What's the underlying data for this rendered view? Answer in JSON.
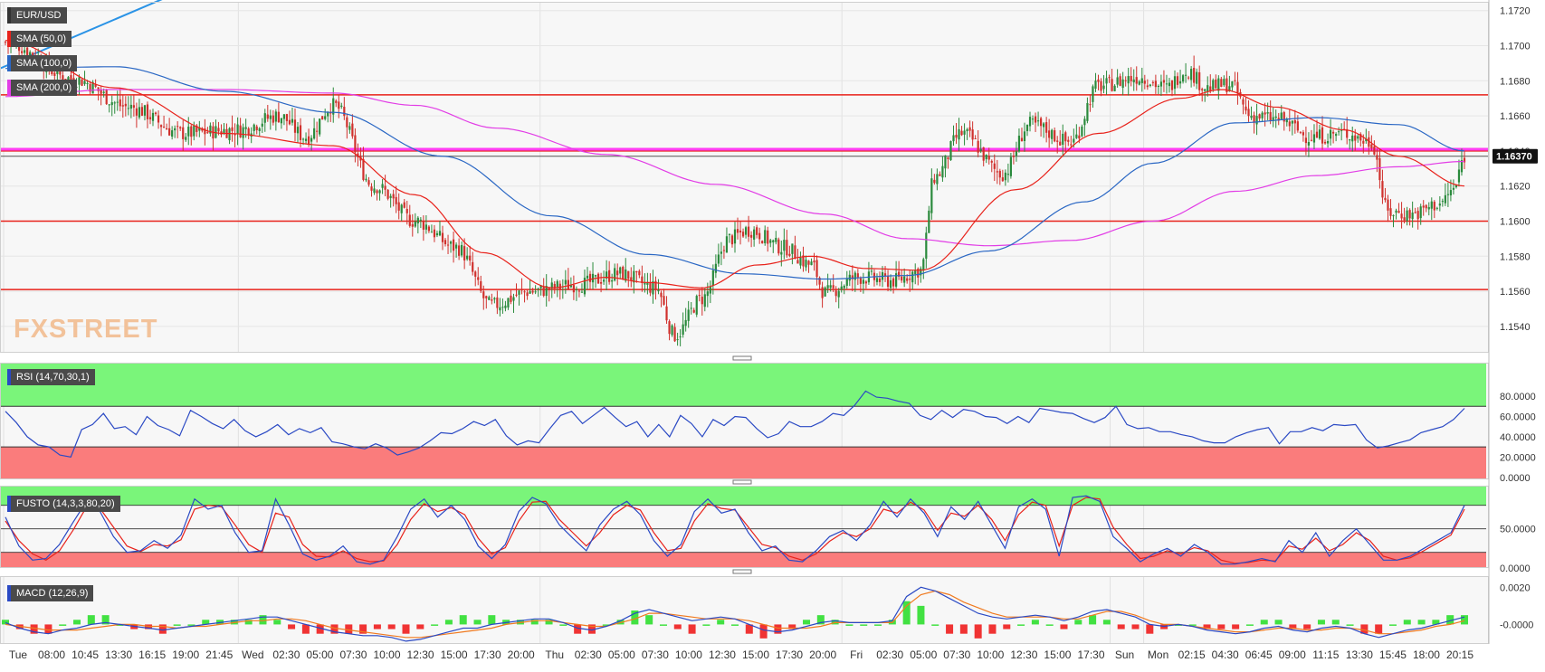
{
  "colors": {
    "up": "#2a8a3c",
    "down": "#d0312d",
    "sma50": "#e8221b",
    "sma100": "#2a67c4",
    "sma200": "#e23de6",
    "trend": "#2a93e6",
    "level": "#e8221b",
    "pivot": "#ff3df2",
    "overbought": "#7af57a",
    "oversold": "#fa7c7c",
    "rsi": "#2a49c4",
    "fusto_k": "#2a49c4",
    "fusto_d": "#e8221b",
    "macd": "#2a49c4",
    "signal": "#f07a1f",
    "hist_up": "#22dd22",
    "hist_down": "#ee1111",
    "grid": "#e6e6e6"
  },
  "chart_data": [
    {
      "type": "candlestick",
      "symbol": "EUR/USD",
      "ylim": [
        1.1525,
        1.1725
      ],
      "yticks": [
        "1.1720",
        "1.1700",
        "1.1680",
        "1.1660",
        "1.1640",
        "1.1620",
        "1.1600",
        "1.1580",
        "1.1560",
        "1.1540"
      ],
      "last_price": "1.16370",
      "horizontal_levels": [
        1.1672,
        1.164,
        1.16,
        1.1561
      ],
      "pivot_level": 1.1641,
      "indicators": [
        "SMA (50,0)",
        "SMA (100,0)",
        "SMA (200,0)"
      ],
      "logo": "FXSTREET",
      "x_labels": [
        "Tue",
        "08:00",
        "10:45",
        "13:30",
        "16:15",
        "19:00",
        "21:45",
        "Wed",
        "02:30",
        "05:00",
        "07:30",
        "10:00",
        "12:30",
        "15:00",
        "17:30",
        "20:00",
        "Thu",
        "02:30",
        "05:00",
        "07:30",
        "10:00",
        "12:30",
        "15:00",
        "17:30",
        "20:00",
        "Fri",
        "02:30",
        "05:00",
        "07:30",
        "10:00",
        "12:30",
        "15:00",
        "17:30",
        "Sun",
        "Mon",
        "02:15",
        "04:30",
        "06:45",
        "09:00",
        "11:15",
        "13:30",
        "15:45",
        "18:00",
        "20:15"
      ],
      "close_anchors": [
        [
          0,
          1.1702
        ],
        [
          25,
          1.1681
        ],
        [
          45,
          1.1665
        ],
        [
          65,
          1.165
        ],
        [
          85,
          1.1652
        ],
        [
          100,
          1.166
        ],
        [
          110,
          1.1648
        ],
        [
          120,
          1.1666
        ],
        [
          135,
          1.162
        ],
        [
          150,
          1.16
        ],
        [
          165,
          1.1585
        ],
        [
          178,
          1.1552
        ],
        [
          192,
          1.156
        ],
        [
          210,
          1.1564
        ],
        [
          225,
          1.157
        ],
        [
          238,
          1.1562
        ],
        [
          245,
          1.1535
        ],
        [
          255,
          1.1556
        ],
        [
          265,
          1.159
        ],
        [
          272,
          1.1595
        ],
        [
          285,
          1.1585
        ],
        [
          295,
          1.1575
        ],
        [
          300,
          1.1559
        ],
        [
          312,
          1.1568
        ],
        [
          325,
          1.1566
        ],
        [
          335,
          1.1572
        ],
        [
          340,
          1.1625
        ],
        [
          350,
          1.165
        ],
        [
          365,
          1.1627
        ],
        [
          375,
          1.1655
        ],
        [
          390,
          1.1645
        ],
        [
          400,
          1.1677
        ],
        [
          415,
          1.1682
        ],
        [
          425,
          1.1676
        ],
        [
          432,
          1.1686
        ],
        [
          440,
          1.1676
        ],
        [
          448,
          1.1678
        ],
        [
          456,
          1.166
        ],
        [
          466,
          1.1658
        ],
        [
          478,
          1.1648
        ],
        [
          490,
          1.165
        ],
        [
          500,
          1.1645
        ],
        [
          506,
          1.1605
        ],
        [
          515,
          1.1604
        ],
        [
          525,
          1.161
        ],
        [
          530,
          1.1618
        ],
        [
          534,
          1.1637
        ]
      ],
      "sma50_anchors": [
        [
          0,
          1.1703
        ],
        [
          40,
          1.1676
        ],
        [
          80,
          1.165
        ],
        [
          120,
          1.1643
        ],
        [
          150,
          1.1615
        ],
        [
          175,
          1.1582
        ],
        [
          200,
          1.1562
        ],
        [
          220,
          1.1568
        ],
        [
          235,
          1.1565
        ],
        [
          255,
          1.1562
        ],
        [
          275,
          1.1575
        ],
        [
          295,
          1.158
        ],
        [
          315,
          1.1573
        ],
        [
          335,
          1.1572
        ],
        [
          370,
          1.1618
        ],
        [
          400,
          1.165
        ],
        [
          430,
          1.167
        ],
        [
          445,
          1.1675
        ],
        [
          465,
          1.1665
        ],
        [
          490,
          1.1652
        ],
        [
          510,
          1.1637
        ],
        [
          534,
          1.162
        ]
      ],
      "sma100_anchors": [
        [
          0,
          1.1687
        ],
        [
          40,
          1.1688
        ],
        [
          80,
          1.1674
        ],
        [
          120,
          1.1662
        ],
        [
          160,
          1.1637
        ],
        [
          200,
          1.1603
        ],
        [
          235,
          1.1581
        ],
        [
          270,
          1.157
        ],
        [
          300,
          1.1567
        ],
        [
          330,
          1.1569
        ],
        [
          360,
          1.1583
        ],
        [
          395,
          1.1611
        ],
        [
          420,
          1.1633
        ],
        [
          450,
          1.1656
        ],
        [
          480,
          1.1659
        ],
        [
          510,
          1.1655
        ],
        [
          534,
          1.164
        ]
      ],
      "sma200_anchors": [
        [
          0,
          1.1671
        ],
        [
          40,
          1.1675
        ],
        [
          80,
          1.1675
        ],
        [
          120,
          1.1673
        ],
        [
          150,
          1.1666
        ],
        [
          180,
          1.1653
        ],
        [
          220,
          1.1638
        ],
        [
          260,
          1.1621
        ],
        [
          300,
          1.1604
        ],
        [
          330,
          1.159
        ],
        [
          360,
          1.1586
        ],
        [
          390,
          1.1589
        ],
        [
          420,
          1.16
        ],
        [
          450,
          1.1617
        ],
        [
          480,
          1.1626
        ],
        [
          510,
          1.1631
        ],
        [
          534,
          1.1634
        ]
      ]
    },
    {
      "type": "line",
      "name": "RSI (14,70,30,1)",
      "ylim": [
        -2,
        113
      ],
      "yticks": [
        "80.0000",
        "60.0000",
        "40.0000",
        "20.0000",
        "0.0000"
      ],
      "overbought": 70,
      "oversold": 30,
      "values": [
        65,
        54,
        40,
        32,
        30,
        22,
        20,
        47,
        52,
        63,
        48,
        50,
        42,
        60,
        51,
        47,
        41,
        66,
        60,
        53,
        48,
        57,
        46,
        40,
        45,
        52,
        42,
        48,
        44,
        49,
        35,
        33,
        30,
        28,
        33,
        29,
        22,
        25,
        29,
        36,
        44,
        43,
        48,
        55,
        51,
        57,
        41,
        32,
        36,
        34,
        48,
        61,
        65,
        53,
        61,
        69,
        59,
        50,
        55,
        40,
        52,
        40,
        61,
        53,
        40,
        57,
        51,
        60,
        59,
        48,
        39,
        43,
        55,
        50,
        50,
        55,
        63,
        61,
        71,
        85,
        79,
        78,
        75,
        73,
        61,
        57,
        66,
        59,
        67,
        65,
        60,
        59,
        53,
        60,
        54,
        68,
        66,
        64,
        63,
        58,
        54,
        59,
        70,
        52,
        48,
        49,
        45,
        45,
        42,
        40,
        36,
        34,
        34,
        40,
        44,
        47,
        49,
        33,
        45,
        45,
        49,
        46,
        52,
        51,
        52,
        37,
        29,
        31,
        34,
        37,
        44,
        47,
        50,
        57,
        68
      ]
    },
    {
      "type": "line",
      "name": "FUSTO (14,3,3,80,20)",
      "ylim": [
        0,
        105
      ],
      "yticks": [
        "50.0000",
        "0.0000"
      ],
      "overbought": 80,
      "oversold": 20,
      "k": [
        65,
        28,
        10,
        12,
        30,
        58,
        85,
        72,
        40,
        20,
        22,
        35,
        25,
        42,
        88,
        75,
        80,
        45,
        20,
        22,
        88,
        55,
        18,
        10,
        15,
        28,
        8,
        5,
        10,
        40,
        75,
        88,
        65,
        80,
        62,
        28,
        12,
        30,
        72,
        90,
        82,
        55,
        38,
        22,
        55,
        75,
        85,
        68,
        35,
        15,
        30,
        72,
        88,
        70,
        75,
        45,
        22,
        28,
        10,
        8,
        22,
        40,
        48,
        35,
        55,
        85,
        65,
        88,
        70,
        40,
        78,
        62,
        85,
        55,
        25,
        78,
        88,
        75,
        15,
        90,
        92,
        85,
        40,
        25,
        8,
        18,
        25,
        15,
        30,
        20,
        5,
        5,
        8,
        12,
        8,
        35,
        20,
        45,
        15,
        35,
        50,
        30,
        10,
        10,
        15,
        25,
        35,
        45,
        80
      ],
      "d": [
        60,
        35,
        18,
        10,
        22,
        48,
        78,
        76,
        52,
        28,
        21,
        30,
        28,
        36,
        75,
        80,
        78,
        55,
        30,
        20,
        70,
        65,
        30,
        15,
        14,
        22,
        12,
        8,
        9,
        30,
        62,
        82,
        72,
        77,
        68,
        38,
        18,
        26,
        60,
        84,
        85,
        62,
        45,
        28,
        45,
        68,
        80,
        74,
        45,
        22,
        25,
        60,
        82,
        76,
        74,
        52,
        30,
        26,
        15,
        10,
        18,
        34,
        45,
        40,
        50,
        75,
        70,
        84,
        74,
        48,
        70,
        66,
        80,
        62,
        35,
        68,
        84,
        80,
        28,
        80,
        90,
        88,
        52,
        30,
        12,
        15,
        22,
        18,
        26,
        22,
        10,
        6,
        7,
        10,
        9,
        28,
        24,
        38,
        22,
        30,
        45,
        35,
        15,
        10,
        13,
        22,
        32,
        42,
        75
      ]
    },
    {
      "type": "line",
      "name": "MACD (12,26,9)",
      "ylim": [
        -0.00105,
        0.0026
      ],
      "yticks": [
        "0.0020",
        "-0.0000"
      ],
      "macd": [
        0.0001,
        -0.0002,
        -0.0004,
        -0.0005,
        -0.0003,
        -0.0002,
        0.0,
        0.0001,
        0.0,
        -0.0001,
        -0.0002,
        -0.0003,
        -0.0002,
        -0.0001,
        0.0,
        0.0001,
        0.0002,
        0.0003,
        0.0004,
        0.0004,
        0.0002,
        0.0,
        -0.0002,
        -0.0004,
        -0.0005,
        -0.0006,
        -0.0006,
        -0.0007,
        -0.0009,
        -0.0008,
        -0.0006,
        -0.0004,
        -0.0002,
        -0.0002,
        0.0,
        0.0001,
        0.0002,
        0.0003,
        0.0003,
        0.0001,
        -0.0002,
        -0.0003,
        -0.0001,
        0.0002,
        0.0006,
        0.0008,
        0.0006,
        0.0004,
        0.0002,
        0.0003,
        0.0004,
        0.0003,
        0.0,
        -0.0003,
        -0.0004,
        -0.0003,
        -0.0001,
        0.0001,
        0.0002,
        0.0001,
        0.0001,
        0.0001,
        0.0002,
        0.0015,
        0.002,
        0.0018,
        0.0014,
        0.001,
        0.0006,
        0.0004,
        0.0003,
        0.0004,
        0.0005,
        0.0004,
        0.0002,
        0.0004,
        0.0007,
        0.0008,
        0.0006,
        0.0004,
        0.0,
        -0.0001,
        0.0,
        -0.0001,
        -0.0003,
        -0.0004,
        -0.0005,
        -0.0004,
        -0.0002,
        -0.0001,
        -0.0003,
        -0.0004,
        -0.0002,
        -0.0001,
        -0.0002,
        -0.0005,
        -0.0007,
        -0.0005,
        -0.0003,
        -0.0002,
        0.0,
        0.0002,
        0.0004
      ],
      "signal": [
        0.0,
        -0.0001,
        -0.0002,
        -0.0003,
        -0.0003,
        -0.0003,
        -0.0002,
        -0.0001,
        0.0,
        0.0,
        -0.0001,
        -0.0001,
        -0.0002,
        -0.0001,
        -0.0001,
        0.0,
        0.0001,
        0.0002,
        0.0002,
        0.0003,
        0.0003,
        0.0002,
        0.0,
        -0.0002,
        -0.0003,
        -0.0004,
        -0.0005,
        -0.0006,
        -0.0007,
        -0.0007,
        -0.0006,
        -0.0005,
        -0.0004,
        -0.0003,
        -0.0002,
        0.0,
        0.0001,
        0.0002,
        0.0002,
        0.0001,
        0.0,
        -0.0001,
        -0.0001,
        0.0001,
        0.0003,
        0.0006,
        0.0006,
        0.0005,
        0.0004,
        0.0003,
        0.0003,
        0.0003,
        0.0002,
        0.0,
        -0.0002,
        -0.0002,
        -0.0002,
        -0.0001,
        0.0001,
        0.0001,
        0.0001,
        0.0001,
        0.0001,
        0.001,
        0.0016,
        0.0018,
        0.0016,
        0.0012,
        0.0009,
        0.0006,
        0.0004,
        0.0004,
        0.0004,
        0.0004,
        0.0003,
        0.0003,
        0.0005,
        0.0007,
        0.0007,
        0.0005,
        0.0002,
        0.0,
        0.0,
        -0.0001,
        -0.0002,
        -0.0003,
        -0.0004,
        -0.0004,
        -0.0003,
        -0.0002,
        -0.0002,
        -0.0003,
        -0.0003,
        -0.0002,
        -0.0002,
        -0.0003,
        -0.0005,
        -0.0005,
        -0.0004,
        -0.0003,
        -0.0001,
        0.0,
        0.0002
      ]
    }
  ]
}
